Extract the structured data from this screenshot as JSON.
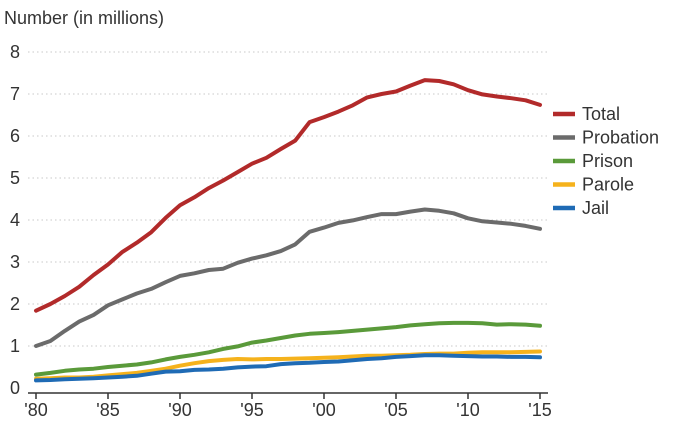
{
  "chart_data": {
    "type": "line",
    "ylabel": "Number (in millions)",
    "xlabel": "",
    "ylim": [
      0,
      8
    ],
    "xlim": [
      1980,
      2015
    ],
    "grid": "horizontal dotted",
    "legend_position": "right",
    "yticks": [
      "0",
      "1",
      "2",
      "3",
      "4",
      "5",
      "6",
      "7",
      "8"
    ],
    "xticks": [
      {
        "value": 1980,
        "label": "'80"
      },
      {
        "value": 1985,
        "label": "'85"
      },
      {
        "value": 1990,
        "label": "'90"
      },
      {
        "value": 1995,
        "label": "'95"
      },
      {
        "value": 2000,
        "label": "'00"
      },
      {
        "value": 2005,
        "label": "'05"
      },
      {
        "value": 2010,
        "label": "'10"
      },
      {
        "value": 2015,
        "label": "'15"
      }
    ],
    "x": [
      1980,
      1981,
      1982,
      1983,
      1984,
      1985,
      1986,
      1987,
      1988,
      1989,
      1990,
      1991,
      1992,
      1993,
      1994,
      1995,
      1996,
      1997,
      1998,
      1999,
      2000,
      2001,
      2002,
      2003,
      2004,
      2005,
      2006,
      2007,
      2008,
      2009,
      2010,
      2011,
      2012,
      2013,
      2014,
      2015
    ],
    "series": [
      {
        "name": "Total",
        "color": "#b22a2a",
        "values": [
          1.84,
          2.0,
          2.19,
          2.41,
          2.69,
          2.94,
          3.24,
          3.46,
          3.71,
          4.05,
          4.35,
          4.54,
          4.76,
          4.94,
          5.14,
          5.34,
          5.48,
          5.69,
          5.89,
          6.33,
          6.45,
          6.58,
          6.73,
          6.92,
          7.0,
          7.06,
          7.2,
          7.33,
          7.31,
          7.23,
          7.09,
          6.99,
          6.94,
          6.9,
          6.85,
          6.74
        ]
      },
      {
        "name": "Probation",
        "color": "#6b6b6b",
        "values": [
          1.0,
          1.12,
          1.36,
          1.58,
          1.74,
          1.97,
          2.11,
          2.25,
          2.36,
          2.52,
          2.67,
          2.73,
          2.81,
          2.84,
          2.98,
          3.08,
          3.16,
          3.26,
          3.42,
          3.72,
          3.82,
          3.93,
          3.99,
          4.07,
          4.14,
          4.14,
          4.2,
          4.25,
          4.22,
          4.16,
          4.04,
          3.97,
          3.94,
          3.91,
          3.86,
          3.79
        ]
      },
      {
        "name": "Prison",
        "color": "#5a9a3a",
        "values": [
          0.32,
          0.36,
          0.41,
          0.44,
          0.46,
          0.5,
          0.53,
          0.56,
          0.61,
          0.68,
          0.74,
          0.79,
          0.85,
          0.93,
          0.99,
          1.08,
          1.13,
          1.19,
          1.25,
          1.29,
          1.31,
          1.33,
          1.36,
          1.39,
          1.42,
          1.45,
          1.49,
          1.52,
          1.54,
          1.55,
          1.55,
          1.54,
          1.51,
          1.52,
          1.51,
          1.48
        ]
      },
      {
        "name": "Parole",
        "color": "#f5b21c",
        "values": [
          0.22,
          0.23,
          0.25,
          0.25,
          0.27,
          0.3,
          0.33,
          0.36,
          0.41,
          0.46,
          0.53,
          0.59,
          0.64,
          0.67,
          0.69,
          0.68,
          0.69,
          0.69,
          0.7,
          0.71,
          0.72,
          0.73,
          0.75,
          0.77,
          0.77,
          0.78,
          0.79,
          0.81,
          0.82,
          0.82,
          0.84,
          0.85,
          0.85,
          0.85,
          0.86,
          0.87
        ]
      },
      {
        "name": "Jail",
        "color": "#1f6bb5",
        "values": [
          0.18,
          0.19,
          0.21,
          0.22,
          0.23,
          0.25,
          0.27,
          0.29,
          0.34,
          0.39,
          0.4,
          0.43,
          0.44,
          0.46,
          0.49,
          0.51,
          0.52,
          0.57,
          0.59,
          0.6,
          0.62,
          0.63,
          0.66,
          0.69,
          0.71,
          0.74,
          0.76,
          0.78,
          0.78,
          0.77,
          0.76,
          0.75,
          0.75,
          0.74,
          0.74,
          0.73
        ]
      }
    ]
  }
}
